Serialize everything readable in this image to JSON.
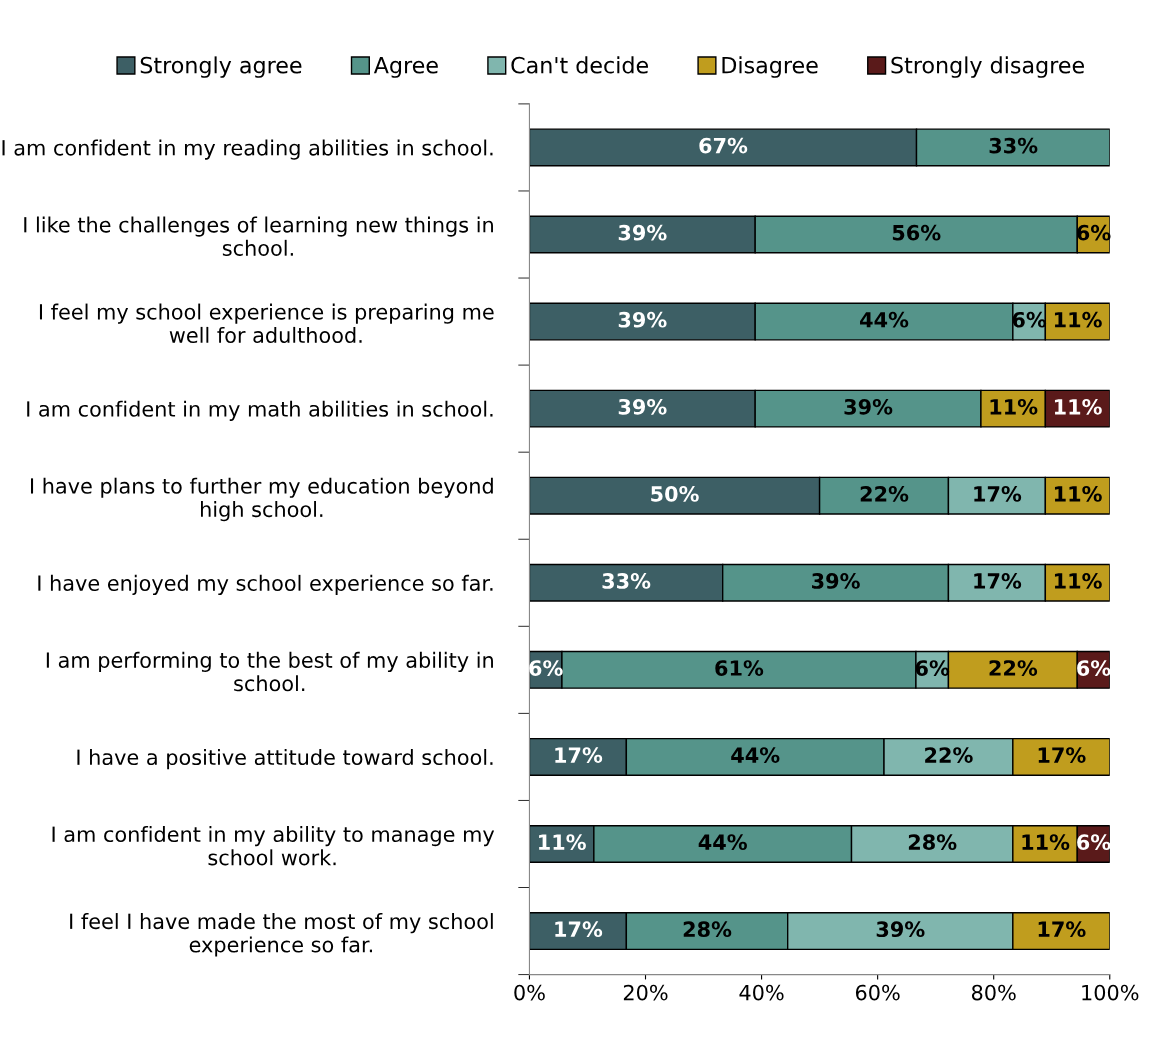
{
  "chart_data": {
    "type": "bar",
    "orientation": "horizontal",
    "stacked": true,
    "legend": "top",
    "grid": false,
    "categories": [
      "I am confident in my reading abilities in school.",
      "I like the challenges of learning new things in school.",
      "I feel my school experience is preparing me well for adulthood.",
      "I am confident in my math abilities in school.",
      "I have plans to further my education beyond high school.",
      "I have enjoyed my school experience so far.",
      "I am performing to the best of my ability in school.",
      "I have a positive attitude toward school.",
      "I am confident in my ability to manage my school work.",
      "I feel I have made the most of my school experience so far."
    ],
    "xlim": [
      0,
      100
    ],
    "xticks": [
      {
        "value": 0,
        "label": "0%"
      },
      {
        "value": 20,
        "label": "20%"
      },
      {
        "value": 40,
        "label": "40%"
      },
      {
        "value": 60,
        "label": "60%"
      },
      {
        "value": 80,
        "label": "80%"
      },
      {
        "value": 100,
        "label": "100%"
      }
    ],
    "series": [
      {
        "name": "Strongly agree",
        "color": "#3d5f65",
        "values": [
          66.7,
          38.9,
          38.9,
          38.9,
          50,
          33.3,
          5.6,
          16.7,
          11.1,
          16.7
        ],
        "value_labels": [
          "67%",
          "39%",
          "39%",
          "39%",
          "50%",
          "33%",
          "6%",
          "17%",
          "11%",
          "17%"
        ]
      },
      {
        "name": "Agree",
        "color": "#55948a",
        "values": [
          33.3,
          55.5,
          44.4,
          38.9,
          22.2,
          38.9,
          61.0,
          44.4,
          44.4,
          27.8
        ],
        "value_labels": [
          "33%",
          "56%",
          "44%",
          "39%",
          "22%",
          "39%",
          "61%",
          "44%",
          "44%",
          "28%"
        ]
      },
      {
        "name": "Can't decide",
        "color": "#80b6ae",
        "values": [
          null,
          null,
          5.6,
          null,
          16.7,
          16.7,
          5.6,
          22.2,
          27.8,
          38.8
        ],
        "value_labels": [
          null,
          null,
          "6%",
          null,
          "17%",
          "17%",
          "6%",
          "22%",
          "28%",
          "39%"
        ]
      },
      {
        "name": "Disagree",
        "color": "#c09d1e",
        "values": [
          null,
          5.6,
          11.1,
          11.1,
          11.1,
          11.1,
          22.2,
          16.7,
          11.1,
          16.7
        ],
        "value_labels": [
          null,
          "6%",
          "11%",
          "11%",
          "11%",
          "11%",
          "22%",
          "17%",
          "11%",
          "17%"
        ]
      },
      {
        "name": "Strongly disagree",
        "color": "#5a1a1a",
        "values": [
          null,
          null,
          null,
          11.1,
          null,
          null,
          5.6,
          null,
          5.6,
          null
        ],
        "value_labels": [
          null,
          null,
          null,
          "11%",
          null,
          null,
          "6%",
          null,
          "6%",
          null
        ]
      }
    ]
  }
}
